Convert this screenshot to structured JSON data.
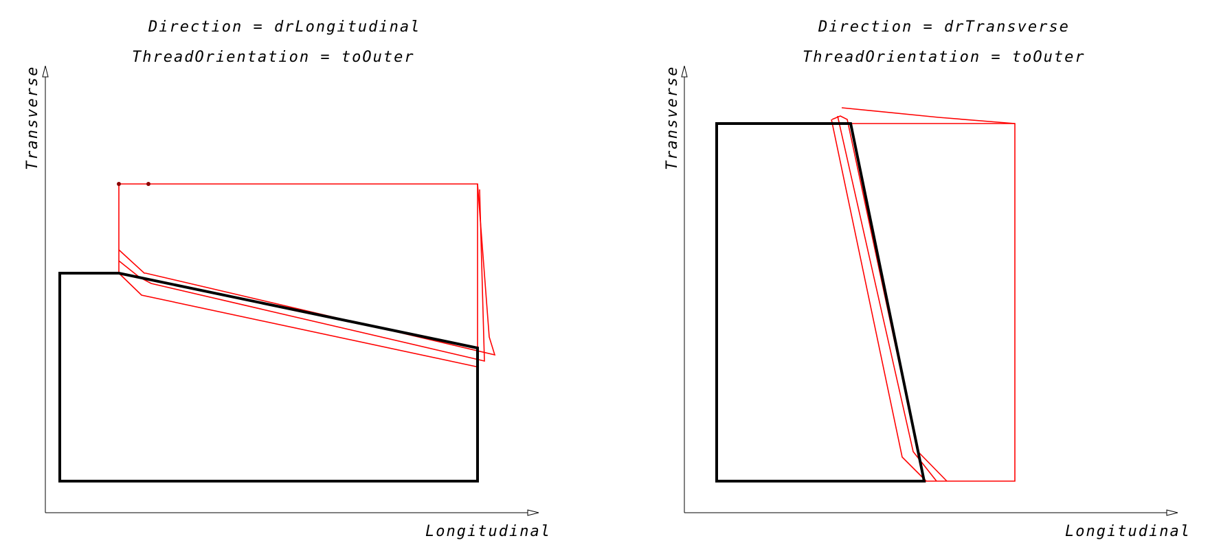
{
  "panels": [
    {
      "direction_label": "Direction = drLongitudinal",
      "orientation_label": "ThreadOrientation = toOuter",
      "x_axis_label": "Longitudinal",
      "y_axis_label": "Transverse"
    },
    {
      "direction_label": "Direction = drTransverse",
      "orientation_label": "ThreadOrientation = toOuter",
      "x_axis_label": "Longitudinal",
      "y_axis_label": "Transverse"
    }
  ],
  "colors": {
    "profile": "#000000",
    "thread": "#ff0000",
    "marker": "#8b0000"
  }
}
